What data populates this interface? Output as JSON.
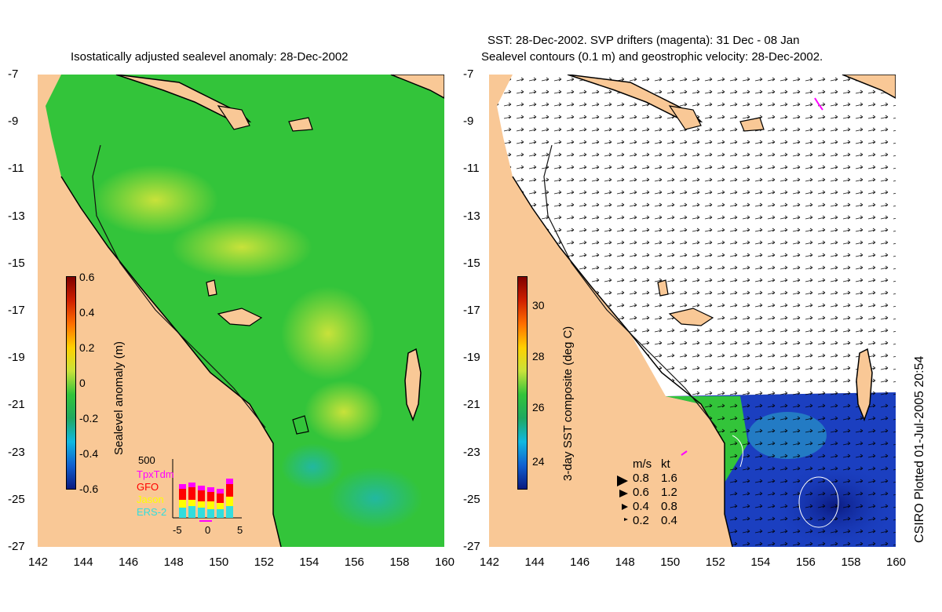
{
  "left_panel": {
    "title": "Isostatically adjusted sealevel anomaly: 28-Dec-2002",
    "colorbar_label": "Sealevel anomaly (m)",
    "colorbar_ticks": [
      "0.6",
      "0.4",
      "0.2",
      "0",
      "-0.2",
      "-0.4",
      "-0.6"
    ],
    "inset": {
      "ylabel_top": "500",
      "legend": [
        {
          "label": "TpxTdm",
          "color": "#ff00ff"
        },
        {
          "label": "GFO",
          "color": "#ff0000"
        },
        {
          "label": "Jason",
          "color": "#ffff00"
        },
        {
          "label": "ERS-2",
          "color": "#33dddd"
        }
      ],
      "xticks": [
        "-5",
        "0",
        "5"
      ]
    }
  },
  "right_panel": {
    "title_line1": "SST: 28-Dec-2002. SVP drifters (magenta): 31 Dec - 08 Jan",
    "title_line2": "Sealevel contours (0.1 m) and geostrophic velocity: 28-Dec-2002.",
    "colorbar_label": "3-day SST composite (deg C)",
    "colorbar_ticks": [
      "30",
      "28",
      "26",
      "24"
    ],
    "velocity_legend": {
      "header_ms": "m/s",
      "header_kt": "kt",
      "rows": [
        {
          "ms": "0.8",
          "kt": "1.6"
        },
        {
          "ms": "0.6",
          "kt": "1.2"
        },
        {
          "ms": "0.4",
          "kt": "0.8"
        },
        {
          "ms": "0.2",
          "kt": "0.4"
        }
      ]
    }
  },
  "y_ticks": [
    "-7",
    "-9",
    "-11",
    "-13",
    "-15",
    "-17",
    "-19",
    "-21",
    "-23",
    "-25",
    "-27"
  ],
  "x_ticks": [
    "142",
    "144",
    "146",
    "148",
    "150",
    "152",
    "154",
    "156",
    "158",
    "160"
  ],
  "credit": "CSIRO Plotted 01-Jul-2005 20:54",
  "colors": {
    "land": "#f9c896",
    "ocean_green": "#33c43a",
    "sst_blue": "#1b3fc0"
  }
}
